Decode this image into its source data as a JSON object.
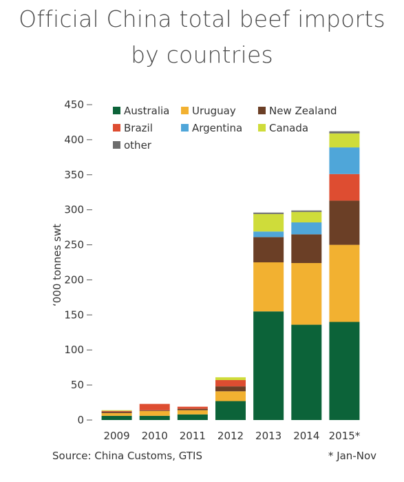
{
  "title_line1": "Official China total beef imports",
  "title_line2": "by countries",
  "source_note": "Source: China Customs, GTIS",
  "footnote": "* Jan-Nov",
  "chart_data": {
    "type": "bar",
    "stacked": true,
    "title": "Official China total beef imports by countries",
    "ylabel": "‘000 tonnes swt",
    "xlabel": "",
    "ylim": [
      0,
      450
    ],
    "yticks": [
      0,
      50,
      100,
      150,
      200,
      250,
      300,
      350,
      400,
      450
    ],
    "categories": [
      "2009",
      "2010",
      "2011",
      "2012",
      "2013",
      "2014",
      "2015*"
    ],
    "legend_position": "top-left",
    "grid": false,
    "series": [
      {
        "name": "Australia",
        "color": "#0c6339",
        "values": [
          6,
          6,
          8,
          27,
          155,
          136,
          140
        ]
      },
      {
        "name": "Uruguay",
        "color": "#f2b131",
        "values": [
          4,
          7,
          6,
          14,
          70,
          88,
          110
        ]
      },
      {
        "name": "New Zealand",
        "color": "#6b3f26",
        "values": [
          2,
          1,
          2,
          7,
          36,
          41,
          63
        ]
      },
      {
        "name": "Brazil",
        "color": "#de4d31",
        "values": [
          1,
          9,
          3,
          9,
          0,
          0,
          38
        ]
      },
      {
        "name": "Argentina",
        "color": "#4fa6d9",
        "values": [
          0,
          0,
          0,
          0,
          8,
          17,
          38
        ]
      },
      {
        "name": "Canada",
        "color": "#cfdc3a",
        "values": [
          1,
          0,
          0,
          4,
          25,
          15,
          20
        ]
      },
      {
        "name": "other",
        "color": "#6d6d6d",
        "values": [
          0,
          0,
          0,
          0,
          2,
          2,
          3
        ]
      }
    ]
  }
}
